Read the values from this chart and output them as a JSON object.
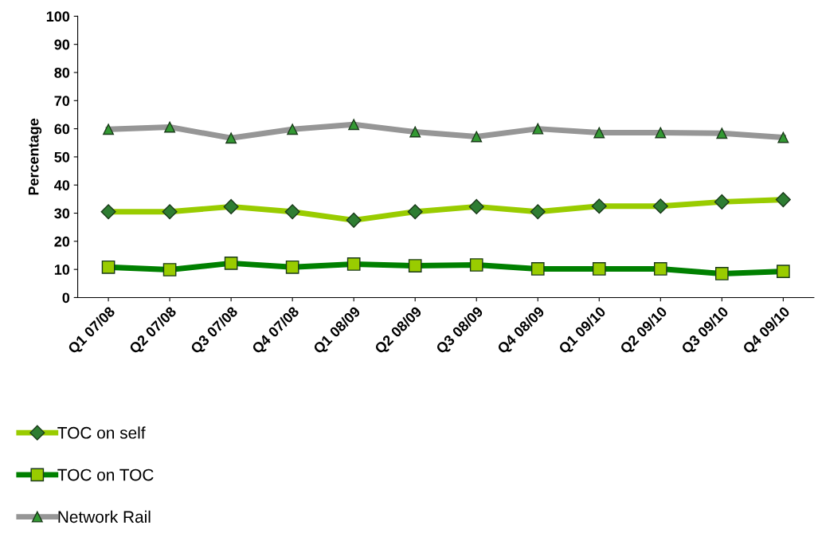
{
  "chart_data": {
    "type": "line",
    "ylabel": "Percentage",
    "ylim": [
      0,
      100
    ],
    "yticks": [
      0,
      10,
      20,
      30,
      40,
      50,
      60,
      70,
      80,
      90,
      100
    ],
    "grid": false,
    "legend": "bottom left",
    "categories": [
      "Q1 07/08",
      "Q2 07/08",
      "Q3 07/08",
      "Q4 07/08",
      "Q1 08/09",
      "Q2 08/09",
      "Q3 08/09",
      "Q4 08/09",
      "Q1 09/10",
      "Q2 09/10",
      "Q3 09/10",
      "Q4 09/10"
    ],
    "series": [
      {
        "name": "TOC on self",
        "color": "#99cc00",
        "marker": "diamond",
        "values": [
          30.5,
          30.5,
          32.3,
          30.5,
          27.5,
          30.5,
          32.3,
          30.5,
          32.5,
          32.5,
          34,
          34.8
        ]
      },
      {
        "name": "TOC on TOC",
        "color": "#008000",
        "marker": "square",
        "values": [
          10.8,
          9.9,
          12.2,
          10.8,
          11.9,
          11.3,
          11.6,
          10.2,
          10.2,
          10.2,
          8.5,
          9.3
        ]
      },
      {
        "name": "Network Rail",
        "color": "#969696",
        "marker": "triangle",
        "values": [
          59.8,
          60.6,
          56.7,
          59.8,
          61.5,
          58.9,
          57.2,
          60,
          58.6,
          58.6,
          58.4,
          56.9
        ]
      }
    ]
  }
}
